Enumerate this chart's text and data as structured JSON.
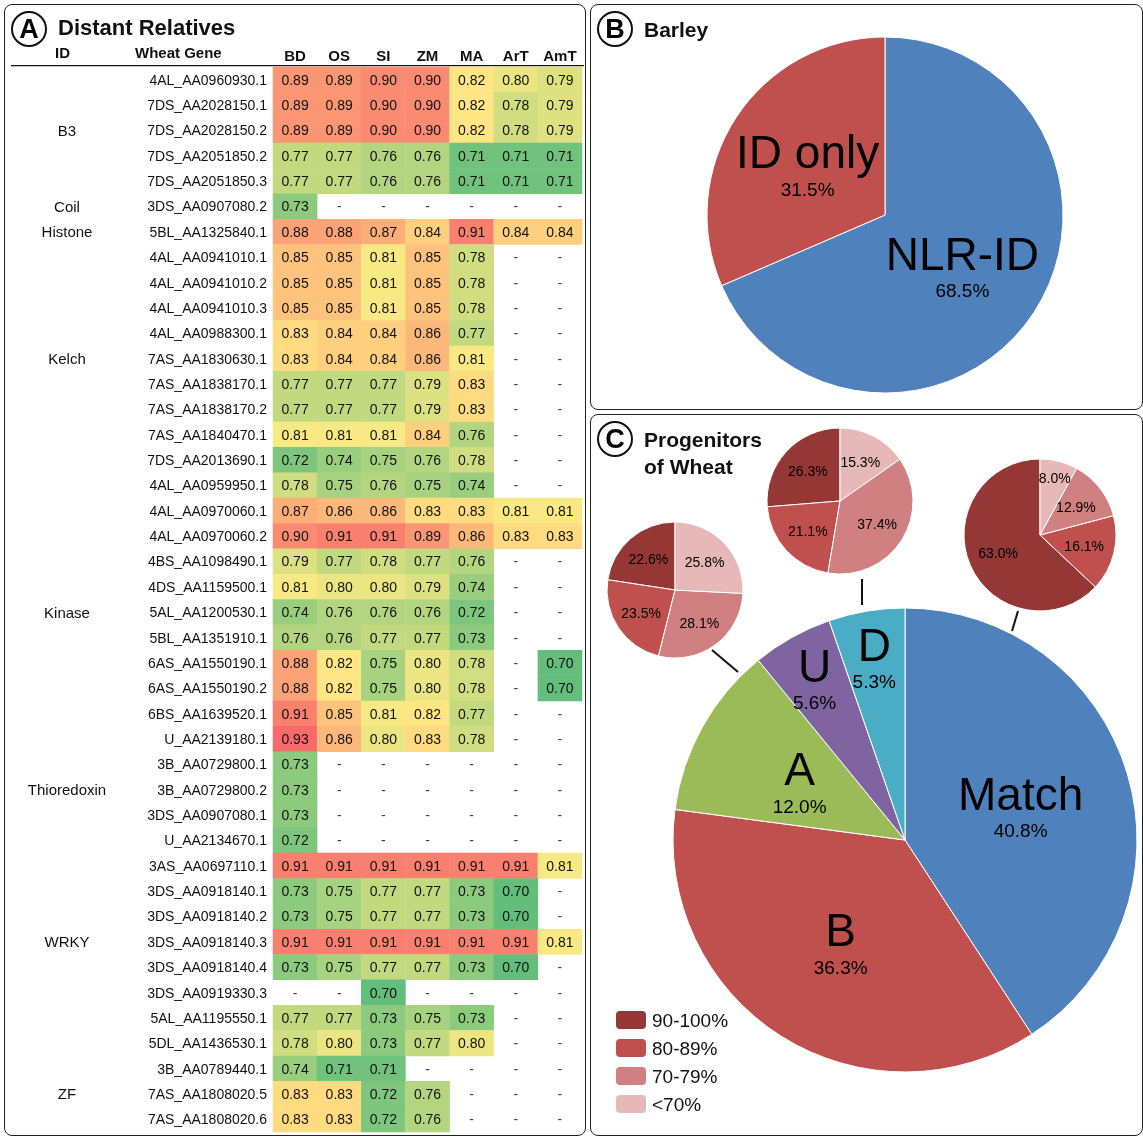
{
  "chart_data": [
    {
      "type": "heatmap",
      "title": "Distant Relatives",
      "annotations": [
        "A"
      ],
      "ylabel": "Wheat Gene",
      "y2label": "ID",
      "data_labels": true,
      "categories": [
        "BD",
        "OS",
        "SI",
        "ZM",
        "MA",
        "ArT",
        "AmT"
      ],
      "y_categories": [
        "4AL_AA0960930.1",
        "7DS_AA2028150.1",
        "7DS_AA2028150.2",
        "7DS_AA2051850.2",
        "7DS_AA2051850.3",
        "3DS_AA0907080.2",
        "5BL_AA1325840.1",
        "4AL_AA0941010.1",
        "4AL_AA0941010.2",
        "4AL_AA0941010.3",
        "4AL_AA0988300.1",
        "7AS_AA1830630.1",
        "7AS_AA1838170.1",
        "7AS_AA1838170.2",
        "7AS_AA1840470.1",
        "7DS_AA2013690.1",
        "4AL_AA0959950.1",
        "4AL_AA0970060.1",
        "4AL_AA0970060.2",
        "4BS_AA1098490.1",
        "4DS_AA1159500.1",
        "5AL_AA1200530.1",
        "5BL_AA1351910.1",
        "6AS_AA1550190.1",
        "6AS_AA1550190.2",
        "6BS_AA1639520.1",
        "U_AA2139180.1",
        "3B_AA0729800.1",
        "3B_AA0729800.2",
        "3DS_AA0907080.1",
        "U_AA2134670.1",
        "3AS_AA0697110.1",
        "3DS_AA0918140.1",
        "3DS_AA0918140.2",
        "3DS_AA0918140.3",
        "3DS_AA0918140.4",
        "3DS_AA0919330.3",
        "5AL_AA1195550.1",
        "5DL_AA1436530.1",
        "3B_AA0789440.1",
        "7AS_AA1808020.5",
        "7AS_AA1808020.6"
      ],
      "y2_categories": [
        null,
        null,
        "B3",
        null,
        null,
        "Coil",
        "Histone",
        null,
        null,
        null,
        null,
        "Kelch",
        null,
        null,
        null,
        null,
        null,
        null,
        null,
        null,
        null,
        "Kinase",
        null,
        null,
        null,
        null,
        null,
        null,
        "Thioredoxin",
        null,
        null,
        null,
        null,
        null,
        "WRKY",
        null,
        null,
        null,
        null,
        null,
        "ZF",
        null
      ],
      "cells": [
        [
          0.89,
          0.89,
          0.9,
          0.9,
          0.82,
          0.8,
          0.79
        ],
        [
          0.89,
          0.89,
          0.9,
          0.9,
          0.82,
          0.78,
          0.79
        ],
        [
          0.89,
          0.89,
          0.9,
          0.9,
          0.82,
          0.78,
          0.79
        ],
        [
          0.77,
          0.77,
          0.76,
          0.76,
          0.71,
          0.71,
          0.71
        ],
        [
          0.77,
          0.77,
          0.76,
          0.76,
          0.71,
          0.71,
          0.71
        ],
        [
          0.73,
          null,
          null,
          null,
          null,
          null,
          null
        ],
        [
          0.88,
          0.88,
          0.87,
          0.84,
          0.91,
          0.84,
          0.84
        ],
        [
          0.85,
          0.85,
          0.81,
          0.85,
          0.78,
          null,
          null
        ],
        [
          0.85,
          0.85,
          0.81,
          0.85,
          0.78,
          null,
          null
        ],
        [
          0.85,
          0.85,
          0.81,
          0.85,
          0.78,
          null,
          null
        ],
        [
          0.83,
          0.84,
          0.84,
          0.86,
          0.77,
          null,
          null
        ],
        [
          0.83,
          0.84,
          0.84,
          0.86,
          0.81,
          null,
          null
        ],
        [
          0.77,
          0.77,
          0.77,
          0.79,
          0.83,
          null,
          null
        ],
        [
          0.77,
          0.77,
          0.77,
          0.79,
          0.83,
          null,
          null
        ],
        [
          0.81,
          0.81,
          0.81,
          0.84,
          0.76,
          null,
          null
        ],
        [
          0.72,
          0.74,
          0.75,
          0.76,
          0.78,
          null,
          null
        ],
        [
          0.78,
          0.75,
          0.76,
          0.75,
          0.74,
          null,
          null
        ],
        [
          0.87,
          0.86,
          0.86,
          0.83,
          0.83,
          0.81,
          0.81
        ],
        [
          0.9,
          0.91,
          0.91,
          0.89,
          0.86,
          0.83,
          0.83
        ],
        [
          0.79,
          0.77,
          0.78,
          0.77,
          0.76,
          null,
          null
        ],
        [
          0.81,
          0.8,
          0.8,
          0.79,
          0.74,
          null,
          null
        ],
        [
          0.74,
          0.76,
          0.76,
          0.76,
          0.72,
          null,
          null
        ],
        [
          0.76,
          0.76,
          0.77,
          0.77,
          0.73,
          null,
          null
        ],
        [
          0.88,
          0.82,
          0.75,
          0.8,
          0.78,
          null,
          0.7
        ],
        [
          0.88,
          0.82,
          0.75,
          0.8,
          0.78,
          null,
          0.7
        ],
        [
          0.91,
          0.85,
          0.81,
          0.82,
          0.77,
          null,
          null
        ],
        [
          0.93,
          0.86,
          0.8,
          0.83,
          0.78,
          null,
          null
        ],
        [
          0.73,
          null,
          null,
          null,
          null,
          null,
          null
        ],
        [
          0.73,
          null,
          null,
          null,
          null,
          null,
          null
        ],
        [
          0.73,
          null,
          null,
          null,
          null,
          null,
          null
        ],
        [
          0.72,
          null,
          null,
          null,
          null,
          null,
          null
        ],
        [
          0.91,
          0.91,
          0.91,
          0.91,
          0.91,
          0.91,
          0.81
        ],
        [
          0.73,
          0.75,
          0.77,
          0.77,
          0.73,
          0.7,
          null
        ],
        [
          0.73,
          0.75,
          0.77,
          0.77,
          0.73,
          0.7,
          null
        ],
        [
          0.91,
          0.91,
          0.91,
          0.91,
          0.91,
          0.91,
          0.81
        ],
        [
          0.73,
          0.75,
          0.77,
          0.77,
          0.73,
          0.7,
          null
        ],
        [
          null,
          null,
          0.7,
          null,
          null,
          null,
          null
        ],
        [
          0.77,
          0.77,
          0.73,
          0.75,
          0.73,
          null,
          null
        ],
        [
          0.78,
          0.8,
          0.73,
          0.77,
          0.8,
          null,
          null
        ],
        [
          0.74,
          0.71,
          0.71,
          null,
          null,
          null,
          null
        ],
        [
          0.83,
          0.83,
          0.72,
          0.76,
          null,
          null,
          null
        ],
        [
          0.83,
          0.83,
          0.72,
          0.76,
          null,
          null,
          null
        ]
      ],
      "cell_labels": [
        [
          "0.89",
          "0.89",
          "0.90",
          "0.90",
          "0.82",
          "0.80",
          "0.79"
        ],
        [
          "0.89",
          "0.89",
          "0.90",
          "0.90",
          "0.82",
          "0.78",
          "0.79"
        ],
        [
          "0.89",
          "0.89",
          "0.90",
          "0.90",
          "0.82",
          "0.78",
          "0.79"
        ],
        [
          "0.77",
          "0.77",
          "0.76",
          "0.76",
          "0.71",
          "0.71",
          "0.71"
        ],
        [
          "0.77",
          "0.77",
          "0.76",
          "0.76",
          "0.71",
          "0.71",
          "0.71"
        ],
        [
          "0.73",
          "-",
          "-",
          "-",
          "-",
          "-",
          "-"
        ],
        [
          "0.88",
          "0.88",
          "0.87",
          "0.84",
          "0.91",
          "0.84",
          "0.84"
        ],
        [
          "0.85",
          "0.85",
          "0.81",
          "0.85",
          "0.78",
          "-",
          "-"
        ],
        [
          "0.85",
          "0.85",
          "0.81",
          "0.85",
          "0.78",
          "-",
          "-"
        ],
        [
          "0.85",
          "0.85",
          "0.81",
          "0.85",
          "0.78",
          "-",
          "-"
        ],
        [
          "0.83",
          "0.84",
          "0.84",
          "0.86",
          "0.77",
          "-",
          "-"
        ],
        [
          "0.83",
          "0.84",
          "0.84",
          "0.86",
          "0.81",
          "-",
          "-"
        ],
        [
          "0.77",
          "0.77",
          "0.77",
          "0.79",
          "0.83",
          "-",
          "-"
        ],
        [
          "0.77",
          "0.77",
          "0.77",
          "0.79",
          "0.83",
          "-",
          "-"
        ],
        [
          "0.81",
          "0.81",
          "0.81",
          "0.84",
          "0.76",
          "-",
          "-"
        ],
        [
          "0.72",
          "0.74",
          "0.75",
          "0.76",
          "0.78",
          "-",
          "-"
        ],
        [
          "0.78",
          "0.75",
          "0.76",
          "0.75",
          "0.74",
          "-",
          "-"
        ],
        [
          "0.87",
          "0.86",
          "0.86",
          "0.83",
          "0.83",
          "0.81",
          "0.81"
        ],
        [
          "0.90",
          "0.91",
          "0.91",
          "0.89",
          "0.86",
          "0.83",
          "0.83"
        ],
        [
          "0.79",
          "0.77",
          "0.78",
          "0.77",
          "0.76",
          "-",
          "-"
        ],
        [
          "0.81",
          "0.80",
          "0.80",
          "0.79",
          "0.74",
          "-",
          "-"
        ],
        [
          "0.74",
          "0.76",
          "0.76",
          "0.76",
          "0.72",
          "-",
          "-"
        ],
        [
          "0.76",
          "0.76",
          "0.77",
          "0.77",
          "0.73",
          "-",
          "-"
        ],
        [
          "0.88",
          "0.82",
          "0.75",
          "0.80",
          "0.78",
          "-",
          "0.70"
        ],
        [
          "0.88",
          "0.82",
          "0.75",
          "0.80",
          "0.78",
          "-",
          "0.70"
        ],
        [
          "0.91",
          "0.85",
          "0.81",
          "0.82",
          "0.77",
          "-",
          "-"
        ],
        [
          "0.93",
          "0.86",
          "0.80",
          "0.83",
          "0.78",
          "-",
          "-"
        ],
        [
          "0.73",
          "-",
          "-",
          "-",
          "-",
          "-",
          "-"
        ],
        [
          "0.73",
          "-",
          "-",
          "-",
          "-",
          "-",
          "-"
        ],
        [
          "0.73",
          "-",
          "-",
          "-",
          "-",
          "-",
          "-"
        ],
        [
          "0.72",
          "-",
          "-",
          "-",
          "-",
          "-",
          "-"
        ],
        [
          "0.91",
          "0.91",
          "0.91",
          "0.91",
          "0.91",
          "0.91",
          "0.81"
        ],
        [
          "0.73",
          "0.75",
          "0.77",
          "0.77",
          "0.73",
          "0.70",
          "-"
        ],
        [
          "0.73",
          "0.75",
          "0.77",
          "0.77",
          "0.73",
          "0.70",
          "-"
        ],
        [
          "0.91",
          "0.91",
          "0.91",
          "0.91",
          "0.91",
          "0.91",
          "0.81"
        ],
        [
          "0.73",
          "0.75",
          "0.77",
          "0.77",
          "0.73",
          "0.70",
          "-"
        ],
        [
          "-",
          "-",
          "0.70",
          "-",
          "-",
          "-",
          "-"
        ],
        [
          "0.77",
          "0.77",
          "0.73",
          "0.75",
          "0.73",
          "-",
          "-"
        ],
        [
          "0.78",
          "0.80",
          "0.73",
          "0.77",
          "0.80",
          "-",
          "-"
        ],
        [
          "0.74",
          "0.71",
          "0.71",
          "-",
          "-",
          "-",
          "-"
        ],
        [
          "0.83",
          "0.83",
          "0.72",
          "0.76",
          "-",
          "-",
          "-"
        ],
        [
          "0.83",
          "0.83",
          "0.72",
          "0.76",
          "-",
          "-",
          "-"
        ]
      ]
    },
    {
      "type": "pie",
      "title": "Barley",
      "annotations": [
        "B"
      ],
      "categories": [
        "NLR-ID",
        "ID only"
      ],
      "values": [
        68.5,
        31.5
      ],
      "colors": [
        "#4f81bd",
        "#c0504d"
      ],
      "value_labels": [
        "68.5%",
        "31.5%"
      ]
    },
    {
      "type": "pie",
      "title": "Progenitors of Wheat",
      "annotations": [
        "C"
      ],
      "categories": [
        "Match",
        "B",
        "A",
        "U",
        "D"
      ],
      "values": [
        40.8,
        36.3,
        12.0,
        5.6,
        5.3
      ],
      "colors": [
        "#4f81bd",
        "#c0504d",
        "#9bbb59",
        "#8064a2",
        "#4bacc6"
      ],
      "value_labels": [
        "40.8%",
        "36.3%",
        "12.0%",
        "5.6%",
        "5.3%"
      ]
    },
    {
      "type": "pie",
      "legend": "bottom left",
      "categories": [
        "90-100%",
        "80-89%",
        "70-79%",
        "<70%"
      ],
      "values": [
        22.6,
        23.5,
        28.1,
        25.8
      ],
      "colors": [
        "#953735",
        "#c0504d",
        "#d08080",
        "#e6b9b8"
      ],
      "value_labels": [
        "22.6%",
        "23.5%",
        "28.1%",
        "25.8%"
      ]
    },
    {
      "type": "pie",
      "categories": [
        null,
        null,
        null,
        null
      ],
      "values": [
        26.3,
        21.1,
        37.4,
        15.3
      ],
      "colors": [
        "#953735",
        "#c0504d",
        "#d08080",
        "#e6b9b8"
      ],
      "value_labels": [
        "26.3%",
        "21.1%",
        "37.4%",
        "15.3%"
      ]
    },
    {
      "type": "pie",
      "categories": [
        null,
        null,
        null,
        null
      ],
      "values": [
        63.0,
        16.1,
        12.9,
        8.0
      ],
      "colors": [
        "#953735",
        "#c0504d",
        "#d08080",
        "#e6b9b8"
      ],
      "value_labels": [
        "63.0%",
        "16.1%",
        "12.9%",
        "8.0%"
      ]
    }
  ]
}
